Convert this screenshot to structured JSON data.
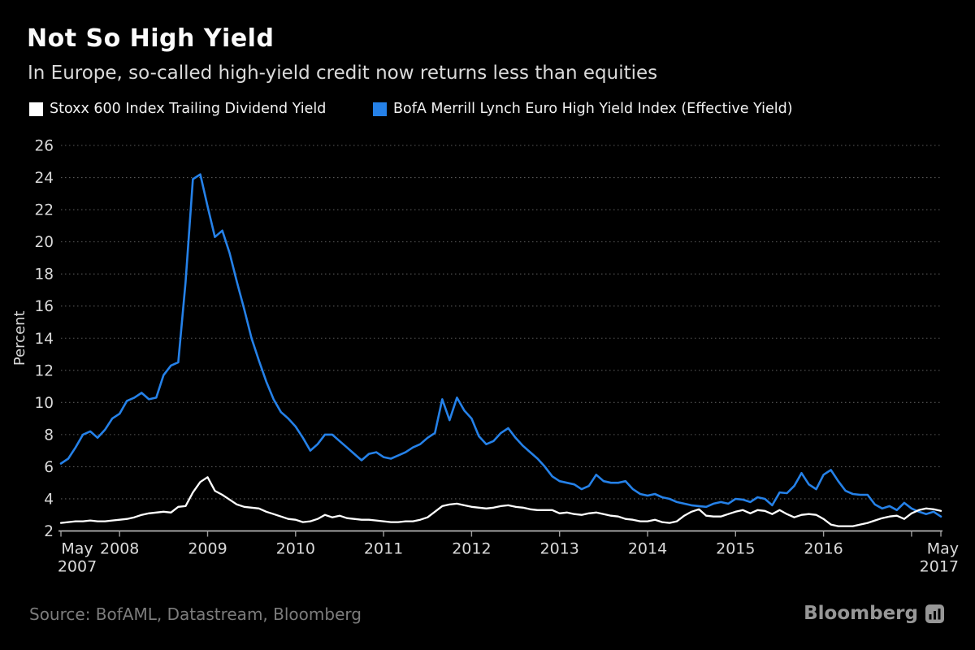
{
  "header": {
    "title": "Not So High Yield",
    "subtitle": "In Europe, so-called high-yield credit now returns less than equities"
  },
  "legend": [
    {
      "label": "Stoxx 600 Index Trailing Dividend Yield",
      "color": "#ffffff"
    },
    {
      "label": "BofA Merrill Lynch Euro High Yield Index (Effective Yield)",
      "color": "#2581e8"
    }
  ],
  "chart_data": {
    "type": "line",
    "title": "Not So High Yield",
    "subtitle": "In Europe, so-called high-yield credit now returns less than equities",
    "xlabel": "",
    "ylabel": "Percent",
    "ylim": [
      2,
      26
    ],
    "yticks": [
      2,
      4,
      6,
      8,
      10,
      12,
      14,
      16,
      18,
      20,
      22,
      24,
      26
    ],
    "grid": "dotted-horizontal",
    "legend_position": "top",
    "x_monthly_start": "2007-05",
    "x_monthly_end": "2017-05",
    "x_axis": {
      "start_label_line1": "May",
      "start_label_line2": "2007",
      "end_label_line1": "May",
      "end_label_line2": "2017",
      "year_labels": [
        "2008",
        "2009",
        "2010",
        "2011",
        "2012",
        "2013",
        "2014",
        "2015",
        "2016"
      ]
    },
    "series": [
      {
        "name": "Stoxx 600 Index Trailing Dividend Yield",
        "color": "#ffffff",
        "values": [
          2.5,
          2.55,
          2.6,
          2.6,
          2.65,
          2.6,
          2.6,
          2.65,
          2.7,
          2.75,
          2.85,
          3.0,
          3.1,
          3.15,
          3.2,
          3.15,
          3.5,
          3.55,
          4.4,
          5.05,
          5.35,
          4.5,
          4.25,
          3.95,
          3.65,
          3.5,
          3.45,
          3.4,
          3.2,
          3.05,
          2.9,
          2.75,
          2.7,
          2.55,
          2.6,
          2.75,
          3.0,
          2.85,
          2.95,
          2.8,
          2.75,
          2.7,
          2.7,
          2.65,
          2.6,
          2.55,
          2.55,
          2.6,
          2.6,
          2.7,
          2.85,
          3.2,
          3.55,
          3.65,
          3.7,
          3.6,
          3.5,
          3.45,
          3.4,
          3.45,
          3.55,
          3.6,
          3.5,
          3.45,
          3.35,
          3.3,
          3.3,
          3.3,
          3.1,
          3.15,
          3.05,
          3.0,
          3.1,
          3.15,
          3.05,
          2.95,
          2.9,
          2.75,
          2.7,
          2.6,
          2.6,
          2.7,
          2.55,
          2.5,
          2.6,
          2.95,
          3.2,
          3.35,
          2.95,
          2.9,
          2.9,
          3.05,
          3.2,
          3.3,
          3.1,
          3.3,
          3.25,
          3.05,
          3.3,
          3.05,
          2.85,
          3.0,
          3.05,
          3.0,
          2.75,
          2.4,
          2.3,
          2.3,
          2.3,
          2.4,
          2.5,
          2.65,
          2.8,
          2.9,
          2.95,
          2.75,
          3.1,
          3.3,
          3.4,
          3.35,
          3.25
        ]
      },
      {
        "name": "BofA Merrill Lynch Euro High Yield Index (Effective Yield)",
        "color": "#2581e8",
        "values": [
          6.2,
          6.5,
          7.2,
          8.0,
          8.2,
          7.8,
          8.3,
          9.0,
          9.3,
          10.1,
          10.3,
          10.6,
          10.2,
          10.3,
          11.7,
          12.3,
          12.5,
          17.5,
          23.9,
          24.2,
          22.2,
          20.3,
          20.7,
          19.3,
          17.5,
          15.8,
          14.0,
          12.6,
          11.3,
          10.2,
          9.4,
          9.0,
          8.5,
          7.8,
          7.0,
          7.4,
          8.0,
          8.0,
          7.6,
          7.2,
          6.8,
          6.4,
          6.8,
          6.9,
          6.6,
          6.5,
          6.7,
          6.9,
          7.2,
          7.4,
          7.8,
          8.1,
          10.2,
          8.9,
          10.3,
          9.5,
          9.0,
          7.9,
          7.4,
          7.6,
          8.1,
          8.4,
          7.8,
          7.3,
          6.9,
          6.5,
          6.0,
          5.4,
          5.1,
          5.0,
          4.9,
          4.6,
          4.8,
          5.5,
          5.1,
          5.0,
          5.0,
          5.1,
          4.6,
          4.3,
          4.2,
          4.3,
          4.1,
          4.0,
          3.8,
          3.7,
          3.6,
          3.55,
          3.5,
          3.7,
          3.8,
          3.7,
          4.0,
          3.95,
          3.8,
          4.1,
          4.0,
          3.6,
          4.4,
          4.35,
          4.8,
          5.6,
          4.9,
          4.6,
          5.5,
          5.8,
          5.1,
          4.5,
          4.3,
          4.25,
          4.25,
          3.65,
          3.4,
          3.55,
          3.3,
          3.75,
          3.4,
          3.2,
          3.05,
          3.2,
          2.9
        ]
      }
    ],
    "colors": {
      "background": "#000000",
      "gridline": "#575757",
      "axis": "#cfcfcf",
      "tick": "#9c9c9c",
      "tick_label": "#d9d9d9"
    }
  },
  "footer": {
    "source": "Source: BofAML, Datastream, Bloomberg",
    "brand": "Bloomberg"
  }
}
